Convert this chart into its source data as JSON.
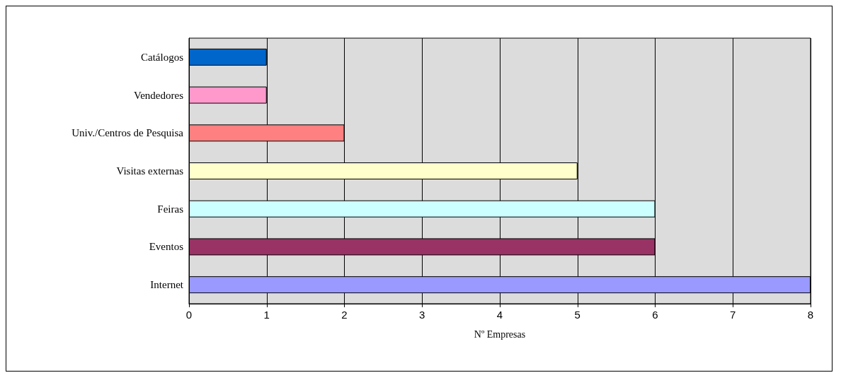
{
  "chart_data": {
    "type": "bar",
    "orientation": "horizontal",
    "xlabel": "Nº Empresas",
    "categories": [
      "Catálogos",
      "Vendedores",
      "Univ./Centros de Pesquisa",
      "Visitas externas",
      "Feiras",
      "Eventos",
      "Internet"
    ],
    "values": [
      1,
      1,
      2,
      5,
      6,
      6,
      8
    ],
    "colors": [
      "#0066cc",
      "#ff99cc",
      "#ff8080",
      "#ffffcc",
      "#ccffff",
      "#993366",
      "#9999ff"
    ],
    "xlim": [
      0,
      8
    ],
    "xticks": [
      0,
      1,
      2,
      3,
      4,
      5,
      6,
      7,
      8
    ],
    "grid": "x"
  }
}
